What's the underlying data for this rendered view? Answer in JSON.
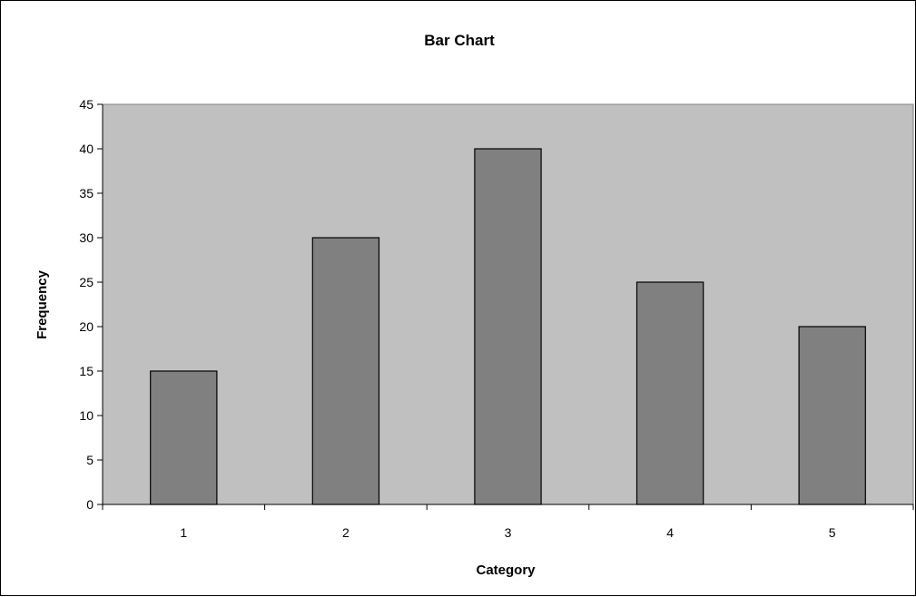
{
  "chart_data": {
    "type": "bar",
    "title": "Bar Chart",
    "xlabel": "Category",
    "ylabel": "Frequency",
    "categories": [
      "1",
      "2",
      "3",
      "4",
      "5"
    ],
    "values": [
      15,
      30,
      40,
      25,
      20
    ],
    "ylim": [
      0,
      45
    ],
    "yticks": [
      "0",
      "5",
      "10",
      "15",
      "20",
      "25",
      "30",
      "35",
      "40",
      "45"
    ],
    "grid": false,
    "legend": "none",
    "colors": {
      "plot_background": "#c0c0c0",
      "bar_fill": "#808080",
      "bar_stroke": "#000000"
    }
  }
}
